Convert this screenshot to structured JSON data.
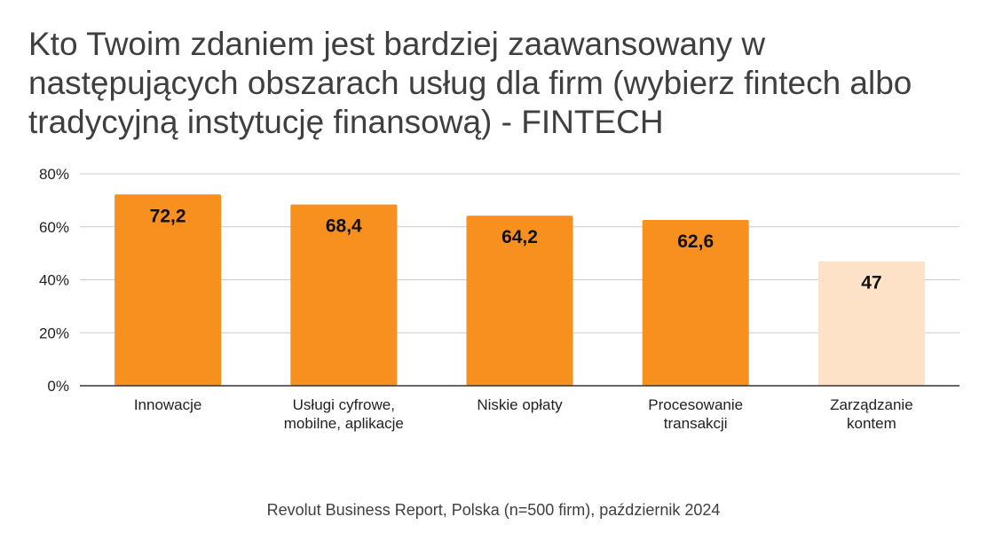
{
  "chart_data": {
    "type": "bar",
    "title": "Kto Twoim zdaniem jest bardziej zaawansowany w następujących obszarach usług dla firm (wybierz fintech albo tradycyjną instytucję finansową) - FINTECH",
    "categories": [
      [
        "Innowacje"
      ],
      [
        "Usługi cyfrowe,",
        "mobilne, aplikacje"
      ],
      [
        "Niskie opłaty"
      ],
      [
        "Procesowanie",
        "transakcji"
      ],
      [
        "Zarządzanie",
        "kontem"
      ]
    ],
    "values": [
      72.2,
      68.4,
      64.2,
      62.6,
      47
    ],
    "data_labels": [
      "72,2",
      "68,4",
      "64,2",
      "62,6",
      "47"
    ],
    "bar_colors": [
      "#f7901e",
      "#f7901e",
      "#f7901e",
      "#f7901e",
      "#fde2c8"
    ],
    "ylim": [
      0,
      80
    ],
    "yticks": [
      0,
      20,
      40,
      60,
      80
    ],
    "ytick_labels": [
      "0%",
      "20%",
      "40%",
      "60%",
      "80%"
    ],
    "xlabel": "",
    "ylabel": "",
    "grid": true,
    "gridline_color": "#cccccc",
    "axis_color": "#333333",
    "source": "Revolut Business Report, Polska (n=500 firm), październik 2024"
  }
}
